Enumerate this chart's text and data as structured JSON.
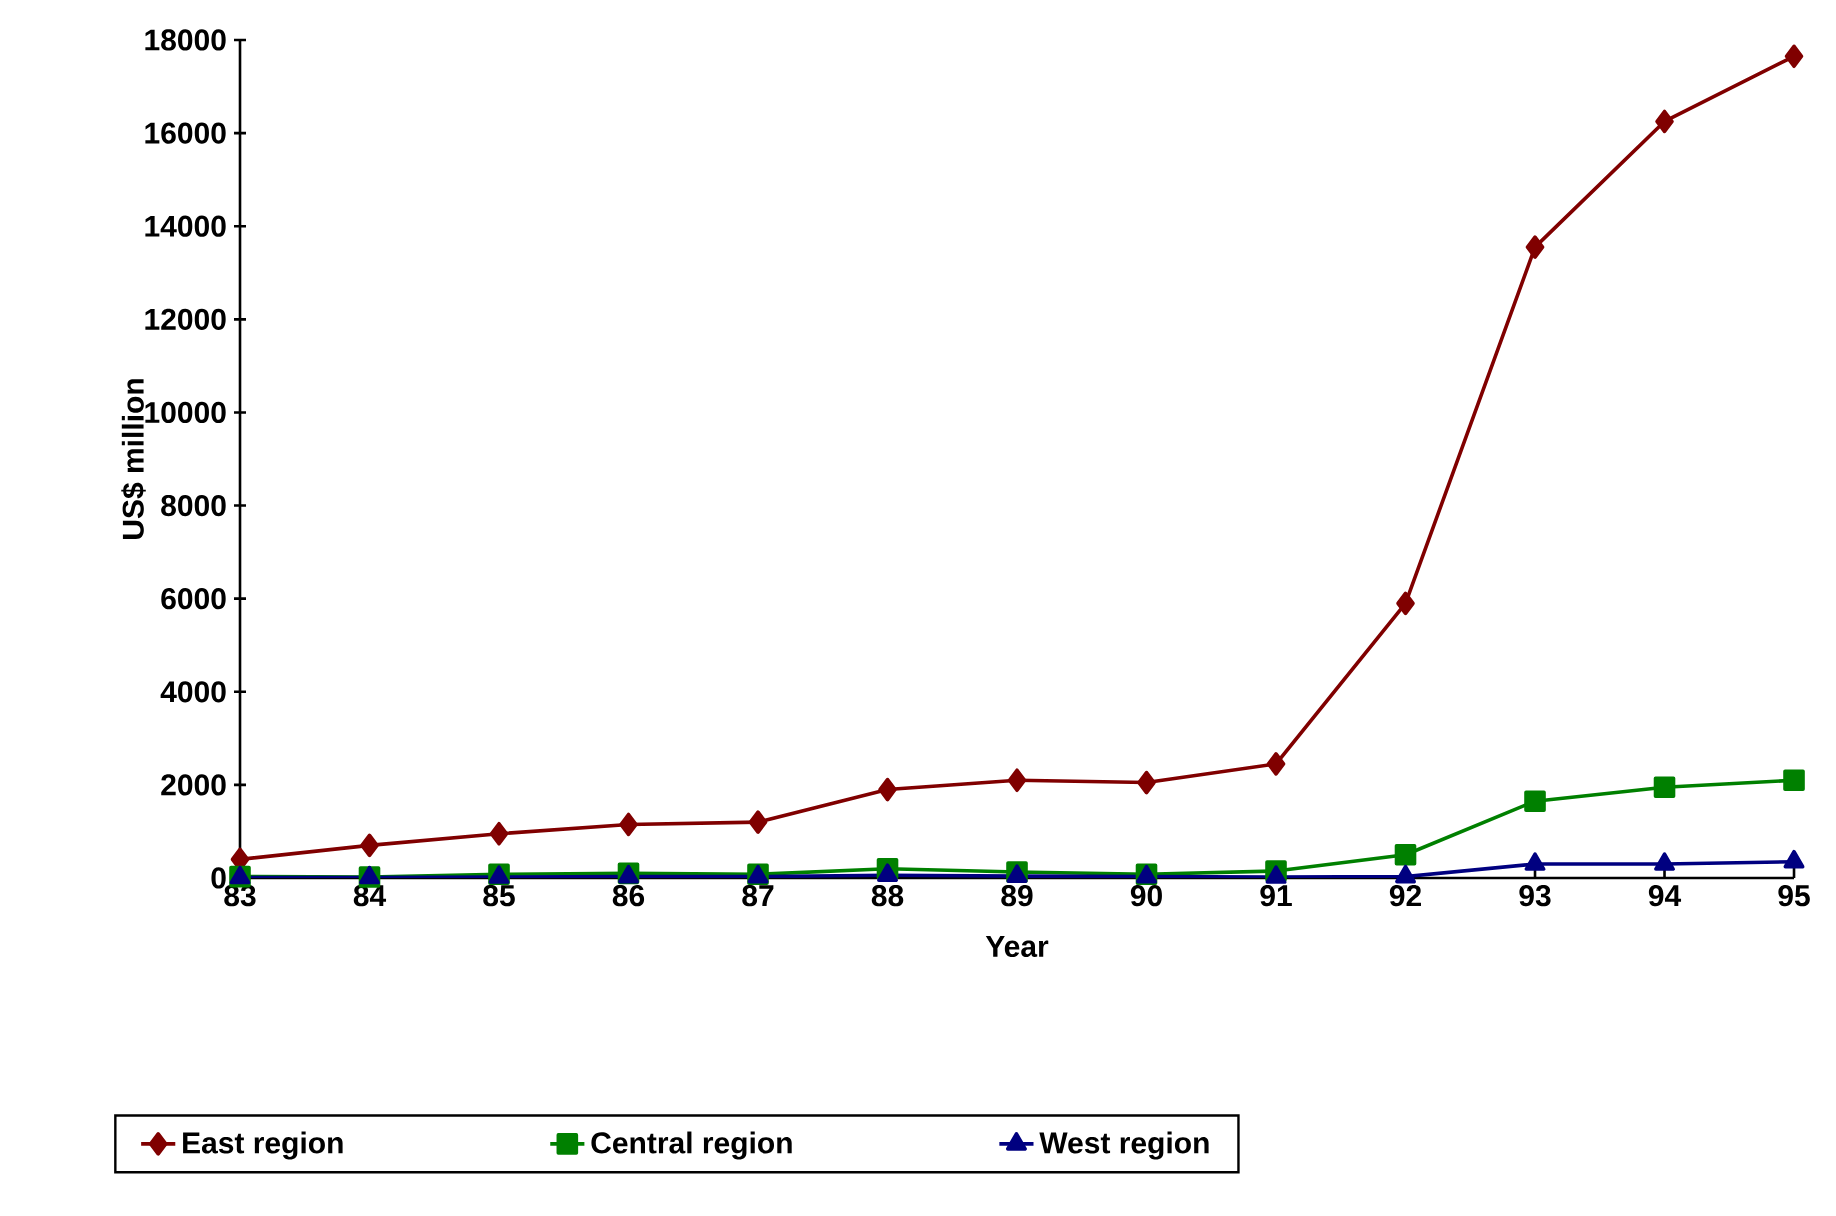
{
  "chart_data": {
    "type": "line",
    "xlabel": "Year",
    "ylabel": "US$ million",
    "categories": [
      "83",
      "84",
      "85",
      "86",
      "87",
      "88",
      "89",
      "90",
      "91",
      "92",
      "93",
      "94",
      "95"
    ],
    "series": [
      {
        "name": "East region",
        "color": "#800000",
        "marker": "diamond",
        "values": [
          400,
          700,
          950,
          1150,
          1200,
          1900,
          2100,
          2050,
          2450,
          5900,
          13550,
          16250,
          17650
        ]
      },
      {
        "name": "Central region",
        "color": "#008000",
        "marker": "square",
        "values": [
          30,
          20,
          80,
          100,
          80,
          200,
          130,
          80,
          150,
          500,
          1650,
          1950,
          2100
        ]
      },
      {
        "name": "West region",
        "color": "#000080",
        "marker": "triangle",
        "values": [
          10,
          10,
          20,
          30,
          30,
          60,
          40,
          30,
          20,
          30,
          300,
          300,
          350
        ]
      }
    ],
    "ylim": [
      0,
      18000
    ],
    "yticks": [
      0,
      2000,
      4000,
      6000,
      8000,
      10000,
      12000,
      14000,
      16000,
      18000
    ],
    "grid": false,
    "legend": "bottom",
    "line_style": "solid"
  }
}
